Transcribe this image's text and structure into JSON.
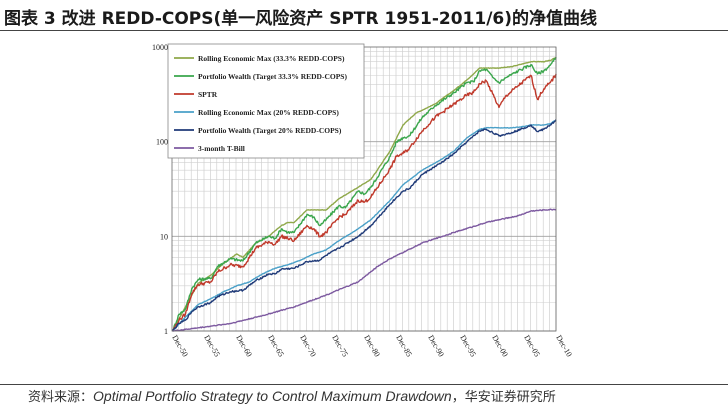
{
  "title": "图表 3 改进 REDD-COPS(单一风险资产 SPTR 1951-2011/6)的净值曲线",
  "source": {
    "prefix": "资料来源：",
    "reference": "Optimal Portfolio Strategy to Control Maximum Drawdown",
    "suffix": "，华安证券研究所"
  },
  "chart_data": {
    "type": "line",
    "title": "",
    "xlabel": "",
    "ylabel": "",
    "yscale": "log",
    "ylim": [
      1,
      1000
    ],
    "xlim": [
      1950.9,
      2010.9
    ],
    "y_ticks": [
      {
        "value": 1,
        "label": "1"
      },
      {
        "value": 10,
        "label": "10"
      },
      {
        "value": 100,
        "label": "100"
      },
      {
        "value": 1000,
        "label": "1000"
      }
    ],
    "x_ticks": [
      {
        "value": 1950.9,
        "label": "Dec-50"
      },
      {
        "value": 1955.9,
        "label": "Dec-55"
      },
      {
        "value": 1960.9,
        "label": "Dec-60"
      },
      {
        "value": 1965.9,
        "label": "Dec-65"
      },
      {
        "value": 1970.9,
        "label": "Dec-70"
      },
      {
        "value": 1975.9,
        "label": "Dec-75"
      },
      {
        "value": 1980.9,
        "label": "Dec-80"
      },
      {
        "value": 1985.9,
        "label": "Dec-85"
      },
      {
        "value": 1990.9,
        "label": "Dec-90"
      },
      {
        "value": 1995.9,
        "label": "Dec-95"
      },
      {
        "value": 2000.9,
        "label": "Dec-00"
      },
      {
        "value": 2005.9,
        "label": "Dec-05"
      },
      {
        "value": 2010.9,
        "label": "Dec-10"
      }
    ],
    "grid": true,
    "legend_position": "top-left",
    "series": [
      {
        "name": "Rolling Economic Max (33.3% REDD-COPS)",
        "color": "#8fa84a",
        "points": [
          [
            1951,
            1
          ],
          [
            1953,
            1.8
          ],
          [
            1955,
            3.2
          ],
          [
            1957,
            3.9
          ],
          [
            1959,
            5.2
          ],
          [
            1961,
            6.5
          ],
          [
            1962,
            6.0
          ],
          [
            1964,
            8.5
          ],
          [
            1966,
            10
          ],
          [
            1968,
            13
          ],
          [
            1969,
            14
          ],
          [
            1970,
            14
          ],
          [
            1972,
            19
          ],
          [
            1974,
            19
          ],
          [
            1975,
            19
          ],
          [
            1977,
            25
          ],
          [
            1980,
            33
          ],
          [
            1982,
            40
          ],
          [
            1985,
            80
          ],
          [
            1987,
            150
          ],
          [
            1989,
            200
          ],
          [
            1992,
            250
          ],
          [
            1995,
            350
          ],
          [
            1997,
            450
          ],
          [
            1999,
            600
          ],
          [
            2000,
            600
          ],
          [
            2002,
            600
          ],
          [
            2004,
            620
          ],
          [
            2007,
            700
          ],
          [
            2008,
            700
          ],
          [
            2009,
            700
          ],
          [
            2010,
            720
          ],
          [
            2011,
            780
          ]
        ]
      },
      {
        "name": "Portfolio Wealth (Target 33.3% REDD-COPS)",
        "color": "#3aa64c",
        "points": [
          [
            1951,
            1
          ],
          [
            1952,
            1.5
          ],
          [
            1953,
            1.7
          ],
          [
            1954,
            2.8
          ],
          [
            1955,
            3.5
          ],
          [
            1957,
            3.6
          ],
          [
            1958,
            4.8
          ],
          [
            1960,
            5.8
          ],
          [
            1962,
            5.5
          ],
          [
            1964,
            8.5
          ],
          [
            1966,
            10
          ],
          [
            1967,
            9.5
          ],
          [
            1968,
            12
          ],
          [
            1969,
            11
          ],
          [
            1970,
            11
          ],
          [
            1972,
            17
          ],
          [
            1973,
            16
          ],
          [
            1974,
            13
          ],
          [
            1975,
            15
          ],
          [
            1977,
            21
          ],
          [
            1978,
            20
          ],
          [
            1980,
            30
          ],
          [
            1981,
            28
          ],
          [
            1982,
            33
          ],
          [
            1985,
            70
          ],
          [
            1986,
            100
          ],
          [
            1987,
            110
          ],
          [
            1988,
            115
          ],
          [
            1990,
            180
          ],
          [
            1992,
            240
          ],
          [
            1995,
            330
          ],
          [
            1997,
            420
          ],
          [
            1998,
            430
          ],
          [
            1999,
            560
          ],
          [
            2000,
            580
          ],
          [
            2001,
            480
          ],
          [
            2002,
            420
          ],
          [
            2003,
            470
          ],
          [
            2005,
            560
          ],
          [
            2007,
            650
          ],
          [
            2008,
            520
          ],
          [
            2009,
            560
          ],
          [
            2010,
            640
          ],
          [
            2011,
            780
          ]
        ]
      },
      {
        "name": "SPTR",
        "color": "#c0392b",
        "points": [
          [
            1951,
            1
          ],
          [
            1952,
            1.3
          ],
          [
            1953,
            1.5
          ],
          [
            1954,
            2.5
          ],
          [
            1955,
            3.1
          ],
          [
            1957,
            3.3
          ],
          [
            1958,
            4.2
          ],
          [
            1960,
            5.0
          ],
          [
            1962,
            4.8
          ],
          [
            1964,
            7.5
          ],
          [
            1966,
            8.8
          ],
          [
            1967,
            8.2
          ],
          [
            1968,
            10
          ],
          [
            1969,
            9.5
          ],
          [
            1970,
            9.0
          ],
          [
            1972,
            13
          ],
          [
            1973,
            12
          ],
          [
            1974,
            10
          ],
          [
            1975,
            11
          ],
          [
            1977,
            16
          ],
          [
            1978,
            17
          ],
          [
            1980,
            24
          ],
          [
            1981,
            23
          ],
          [
            1982,
            26
          ],
          [
            1985,
            52
          ],
          [
            1986,
            70
          ],
          [
            1987,
            75
          ],
          [
            1988,
            85
          ],
          [
            1990,
            130
          ],
          [
            1992,
            180
          ],
          [
            1995,
            250
          ],
          [
            1997,
            310
          ],
          [
            1998,
            330
          ],
          [
            1999,
            410
          ],
          [
            2000,
            440
          ],
          [
            2001,
            320
          ],
          [
            2002,
            230
          ],
          [
            2003,
            300
          ],
          [
            2005,
            390
          ],
          [
            2007,
            500
          ],
          [
            2008,
            280
          ],
          [
            2009,
            360
          ],
          [
            2010,
            420
          ],
          [
            2011,
            520
          ]
        ]
      },
      {
        "name": "Rolling Economic Max (20% REDD-COPS)",
        "color": "#4aa0c8",
        "points": [
          [
            1951,
            1
          ],
          [
            1953,
            1.4
          ],
          [
            1955,
            1.9
          ],
          [
            1957,
            2.2
          ],
          [
            1959,
            2.6
          ],
          [
            1961,
            3.0
          ],
          [
            1963,
            3.3
          ],
          [
            1965,
            4.0
          ],
          [
            1967,
            4.6
          ],
          [
            1969,
            5.0
          ],
          [
            1971,
            5.6
          ],
          [
            1973,
            6.5
          ],
          [
            1975,
            7.2
          ],
          [
            1977,
            9.0
          ],
          [
            1980,
            12
          ],
          [
            1982,
            15
          ],
          [
            1985,
            24
          ],
          [
            1987,
            35
          ],
          [
            1990,
            50
          ],
          [
            1993,
            65
          ],
          [
            1995,
            80
          ],
          [
            1997,
            110
          ],
          [
            1999,
            135
          ],
          [
            2000,
            140
          ],
          [
            2002,
            140
          ],
          [
            2004,
            140
          ],
          [
            2006,
            145
          ],
          [
            2007,
            150
          ],
          [
            2008,
            150
          ],
          [
            2009,
            150
          ],
          [
            2010,
            155
          ],
          [
            2011,
            170
          ]
        ]
      },
      {
        "name": "Portfolio Wealth (Target 20% REDD-COPS)",
        "color": "#1f3a78",
        "points": [
          [
            1951,
            1
          ],
          [
            1952,
            1.2
          ],
          [
            1953,
            1.3
          ],
          [
            1954,
            1.6
          ],
          [
            1955,
            1.8
          ],
          [
            1957,
            2.0
          ],
          [
            1958,
            2.3
          ],
          [
            1960,
            2.6
          ],
          [
            1962,
            2.7
          ],
          [
            1964,
            3.4
          ],
          [
            1966,
            4.0
          ],
          [
            1967,
            4.0
          ],
          [
            1968,
            4.5
          ],
          [
            1970,
            4.6
          ],
          [
            1972,
            5.4
          ],
          [
            1974,
            5.6
          ],
          [
            1975,
            6.3
          ],
          [
            1977,
            7.5
          ],
          [
            1980,
            10
          ],
          [
            1982,
            13
          ],
          [
            1985,
            22
          ],
          [
            1987,
            30
          ],
          [
            1988,
            32
          ],
          [
            1990,
            45
          ],
          [
            1993,
            60
          ],
          [
            1995,
            75
          ],
          [
            1997,
            100
          ],
          [
            1999,
            130
          ],
          [
            2000,
            135
          ],
          [
            2001,
            125
          ],
          [
            2002,
            115
          ],
          [
            2004,
            125
          ],
          [
            2006,
            140
          ],
          [
            2007,
            150
          ],
          [
            2008,
            128
          ],
          [
            2009,
            135
          ],
          [
            2010,
            150
          ],
          [
            2011,
            170
          ]
        ]
      },
      {
        "name": "3-month T-Bill",
        "color": "#7d5aa0",
        "points": [
          [
            1951,
            1
          ],
          [
            1955,
            1.08
          ],
          [
            1960,
            1.2
          ],
          [
            1965,
            1.45
          ],
          [
            1970,
            1.8
          ],
          [
            1975,
            2.4
          ],
          [
            1980,
            3.3
          ],
          [
            1983,
            4.8
          ],
          [
            1985,
            5.8
          ],
          [
            1990,
            8.5
          ],
          [
            1995,
            11
          ],
          [
            2000,
            14
          ],
          [
            2005,
            16.5
          ],
          [
            2007,
            18.5
          ],
          [
            2009,
            19
          ],
          [
            2011,
            19.3
          ]
        ]
      }
    ]
  }
}
